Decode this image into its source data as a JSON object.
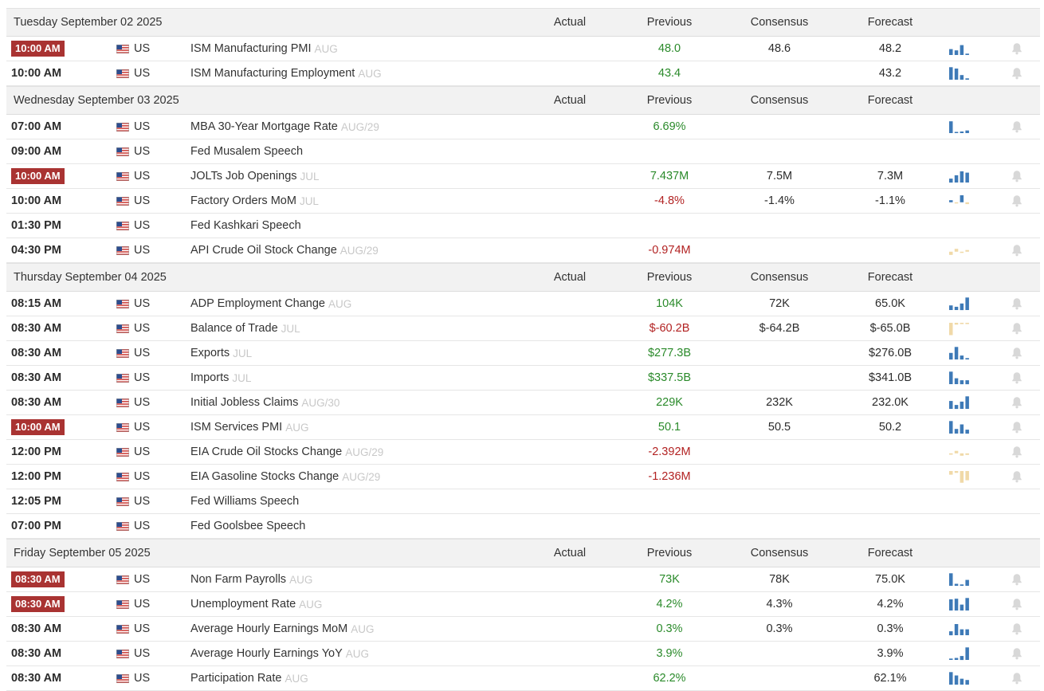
{
  "colors": {
    "positive": "#2a8a2a",
    "negative": "#b22222",
    "badge": "#a93332",
    "spark_blue": "#3e7ab7",
    "spark_tan": "#f0d9a8",
    "bell": "#d8d8d8"
  },
  "columns": {
    "actual": "Actual",
    "previous": "Previous",
    "consensus": "Consensus",
    "forecast": "Forecast"
  },
  "days": [
    {
      "date": "Tuesday September 02 2025",
      "events": [
        {
          "time": "10:00 AM",
          "highlight": true,
          "country": "US",
          "flag_icon": "us-flag-icon",
          "event": "ISM Manufacturing PMI",
          "ref": "AUG",
          "actual": "",
          "previous": "48.0",
          "previous_tone": "positive",
          "consensus": "48.6",
          "forecast": "48.2",
          "spark": {
            "color": "blue",
            "bars": [
              0.45,
              0.35,
              0.75,
              0.1
            ]
          },
          "bell": true
        },
        {
          "time": "10:00 AM",
          "highlight": false,
          "country": "US",
          "flag_icon": "us-flag-icon",
          "event": "ISM Manufacturing Employment",
          "ref": "AUG",
          "actual": "",
          "previous": "43.4",
          "previous_tone": "positive",
          "consensus": "",
          "forecast": "43.2",
          "spark": {
            "color": "blue",
            "bars": [
              0.95,
              0.85,
              0.35,
              0.1
            ]
          },
          "bell": true
        }
      ]
    },
    {
      "date": "Wednesday September 03 2025",
      "events": [
        {
          "time": "07:00 AM",
          "highlight": false,
          "country": "US",
          "flag_icon": "us-flag-icon",
          "event": "MBA 30-Year Mortgage Rate",
          "ref": "AUG/29",
          "actual": "",
          "previous": "6.69%",
          "previous_tone": "positive",
          "consensus": "",
          "forecast": "",
          "spark": {
            "color": "blue",
            "bars": [
              0.9,
              0.08,
              0.12,
              0.2
            ]
          },
          "bell": true
        },
        {
          "time": "09:00 AM",
          "highlight": false,
          "country": "US",
          "flag_icon": "us-flag-icon",
          "event": "Fed Musalem Speech",
          "ref": "",
          "actual": "",
          "previous": "",
          "previous_tone": "",
          "consensus": "",
          "forecast": "",
          "spark": null,
          "bell": false
        },
        {
          "time": "10:00 AM",
          "highlight": true,
          "country": "US",
          "flag_icon": "us-flag-icon",
          "event": "JOLTs Job Openings",
          "ref": "JUL",
          "actual": "",
          "previous": "7.437M",
          "previous_tone": "positive",
          "consensus": "7.5M",
          "forecast": "7.3M",
          "spark": {
            "color": "blue",
            "bars": [
              0.3,
              0.55,
              0.85,
              0.75
            ]
          },
          "bell": true
        },
        {
          "time": "10:00 AM",
          "highlight": false,
          "country": "US",
          "flag_icon": "us-flag-icon",
          "event": "Factory Orders MoM",
          "ref": "JUL",
          "actual": "",
          "previous": "-4.8%",
          "previous_tone": "negative",
          "consensus": "-1.4%",
          "forecast": "-1.1%",
          "spark": {
            "color": "mixed",
            "bars": [
              0.25,
              -0.2,
              0.85,
              -0.35
            ]
          },
          "bell": true
        },
        {
          "time": "01:30 PM",
          "highlight": false,
          "country": "US",
          "flag_icon": "us-flag-icon",
          "event": "Fed Kashkari Speech",
          "ref": "",
          "actual": "",
          "previous": "",
          "previous_tone": "",
          "consensus": "",
          "forecast": "",
          "spark": null,
          "bell": false
        },
        {
          "time": "04:30 PM",
          "highlight": false,
          "country": "US",
          "flag_icon": "us-flag-icon",
          "event": "API Crude Oil Stock Change",
          "ref": "AUG/29",
          "actual": "",
          "previous": "-0.974M",
          "previous_tone": "negative",
          "consensus": "",
          "forecast": "",
          "spark": {
            "color": "tan",
            "bars": [
              -0.6,
              0.35,
              -0.2,
              0.2
            ]
          },
          "bell": true
        }
      ]
    },
    {
      "date": "Thursday September 04 2025",
      "events": [
        {
          "time": "08:15 AM",
          "highlight": false,
          "country": "US",
          "flag_icon": "us-flag-icon",
          "event": "ADP Employment Change",
          "ref": "AUG",
          "actual": "",
          "previous": "104K",
          "previous_tone": "positive",
          "consensus": "72K",
          "forecast": "65.0K",
          "spark": {
            "color": "blue",
            "bars": [
              0.35,
              0.25,
              0.5,
              0.95
            ]
          },
          "bell": true
        },
        {
          "time": "08:30 AM",
          "highlight": false,
          "country": "US",
          "flag_icon": "us-flag-icon",
          "event": "Balance of Trade",
          "ref": "JUL",
          "actual": "",
          "previous": "$-60.2B",
          "previous_tone": "negative",
          "consensus": "$-64.2B",
          "forecast": "$-65.0B",
          "spark": {
            "color": "tan",
            "bars": [
              -1.0,
              -0.15,
              -0.1,
              -0.1
            ]
          },
          "bell": true
        },
        {
          "time": "08:30 AM",
          "highlight": false,
          "country": "US",
          "flag_icon": "us-flag-icon",
          "event": "Exports",
          "ref": "JUL",
          "actual": "",
          "previous": "$277.3B",
          "previous_tone": "positive",
          "consensus": "",
          "forecast": "$276.0B",
          "spark": {
            "color": "blue",
            "bars": [
              0.5,
              0.95,
              0.3,
              0.1
            ]
          },
          "bell": true
        },
        {
          "time": "08:30 AM",
          "highlight": false,
          "country": "US",
          "flag_icon": "us-flag-icon",
          "event": "Imports",
          "ref": "JUL",
          "actual": "",
          "previous": "$337.5B",
          "previous_tone": "positive",
          "consensus": "",
          "forecast": "$341.0B",
          "spark": {
            "color": "blue",
            "bars": [
              0.95,
              0.45,
              0.3,
              0.3
            ]
          },
          "bell": true
        },
        {
          "time": "08:30 AM",
          "highlight": false,
          "country": "US",
          "flag_icon": "us-flag-icon",
          "event": "Initial Jobless Claims",
          "ref": "AUG/30",
          "actual": "",
          "previous": "229K",
          "previous_tone": "positive",
          "consensus": "232K",
          "forecast": "232.0K",
          "spark": {
            "color": "blue",
            "bars": [
              0.6,
              0.3,
              0.55,
              0.95
            ]
          },
          "bell": true
        },
        {
          "time": "10:00 AM",
          "highlight": true,
          "country": "US",
          "flag_icon": "us-flag-icon",
          "event": "ISM Services PMI",
          "ref": "AUG",
          "actual": "",
          "previous": "50.1",
          "previous_tone": "positive",
          "consensus": "50.5",
          "forecast": "50.2",
          "spark": {
            "color": "blue",
            "bars": [
              0.95,
              0.35,
              0.7,
              0.3
            ]
          },
          "bell": true
        },
        {
          "time": "12:00 PM",
          "highlight": false,
          "country": "US",
          "flag_icon": "us-flag-icon",
          "event": "EIA Crude Oil Stocks Change",
          "ref": "AUG/29",
          "actual": "",
          "previous": "-2.392M",
          "previous_tone": "negative",
          "consensus": "",
          "forecast": "",
          "spark": {
            "color": "tan",
            "bars": [
              -0.25,
              0.3,
              -0.45,
              -0.3
            ]
          },
          "bell": true
        },
        {
          "time": "12:00 PM",
          "highlight": false,
          "country": "US",
          "flag_icon": "us-flag-icon",
          "event": "EIA Gasoline Stocks Change",
          "ref": "AUG/29",
          "actual": "",
          "previous": "-1.236M",
          "previous_tone": "negative",
          "consensus": "",
          "forecast": "",
          "spark": {
            "color": "tan",
            "bars": [
              -0.3,
              -0.15,
              -0.95,
              -0.75
            ]
          },
          "bell": true
        },
        {
          "time": "12:05 PM",
          "highlight": false,
          "country": "US",
          "flag_icon": "us-flag-icon",
          "event": "Fed Williams Speech",
          "ref": "",
          "actual": "",
          "previous": "",
          "previous_tone": "",
          "consensus": "",
          "forecast": "",
          "spark": null,
          "bell": false
        },
        {
          "time": "07:00 PM",
          "highlight": false,
          "country": "US",
          "flag_icon": "us-flag-icon",
          "event": "Fed Goolsbee Speech",
          "ref": "",
          "actual": "",
          "previous": "",
          "previous_tone": "",
          "consensus": "",
          "forecast": "",
          "spark": null,
          "bell": false
        }
      ]
    },
    {
      "date": "Friday September 05 2025",
      "events": [
        {
          "time": "08:30 AM",
          "highlight": true,
          "country": "US",
          "flag_icon": "us-flag-icon",
          "event": "Non Farm Payrolls",
          "ref": "AUG",
          "actual": "",
          "previous": "73K",
          "previous_tone": "positive",
          "consensus": "78K",
          "forecast": "75.0K",
          "spark": {
            "color": "blue",
            "bars": [
              0.95,
              0.15,
              0.1,
              0.45
            ]
          },
          "bell": true
        },
        {
          "time": "08:30 AM",
          "highlight": true,
          "country": "US",
          "flag_icon": "us-flag-icon",
          "event": "Unemployment Rate",
          "ref": "AUG",
          "actual": "",
          "previous": "4.2%",
          "previous_tone": "positive",
          "consensus": "4.3%",
          "forecast": "4.2%",
          "spark": {
            "color": "blue",
            "bars": [
              0.85,
              0.9,
              0.45,
              0.95
            ]
          },
          "bell": true
        },
        {
          "time": "08:30 AM",
          "highlight": false,
          "country": "US",
          "flag_icon": "us-flag-icon",
          "event": "Average Hourly Earnings MoM",
          "ref": "AUG",
          "actual": "",
          "previous": "0.3%",
          "previous_tone": "positive",
          "consensus": "0.3%",
          "forecast": "0.3%",
          "spark": {
            "color": "blue",
            "bars": [
              0.3,
              0.85,
              0.45,
              0.45
            ]
          },
          "bell": true
        },
        {
          "time": "08:30 AM",
          "highlight": false,
          "country": "US",
          "flag_icon": "us-flag-icon",
          "event": "Average Hourly Earnings YoY",
          "ref": "AUG",
          "actual": "",
          "previous": "3.9%",
          "previous_tone": "positive",
          "consensus": "",
          "forecast": "3.9%",
          "spark": {
            "color": "blue",
            "bars": [
              0.1,
              0.15,
              0.3,
              0.95
            ]
          },
          "bell": true
        },
        {
          "time": "08:30 AM",
          "highlight": false,
          "country": "US",
          "flag_icon": "us-flag-icon",
          "event": "Participation Rate",
          "ref": "AUG",
          "actual": "",
          "previous": "62.2%",
          "previous_tone": "positive",
          "consensus": "",
          "forecast": "62.1%",
          "spark": {
            "color": "blue",
            "bars": [
              0.95,
              0.7,
              0.45,
              0.35
            ]
          },
          "bell": true
        }
      ]
    }
  ]
}
